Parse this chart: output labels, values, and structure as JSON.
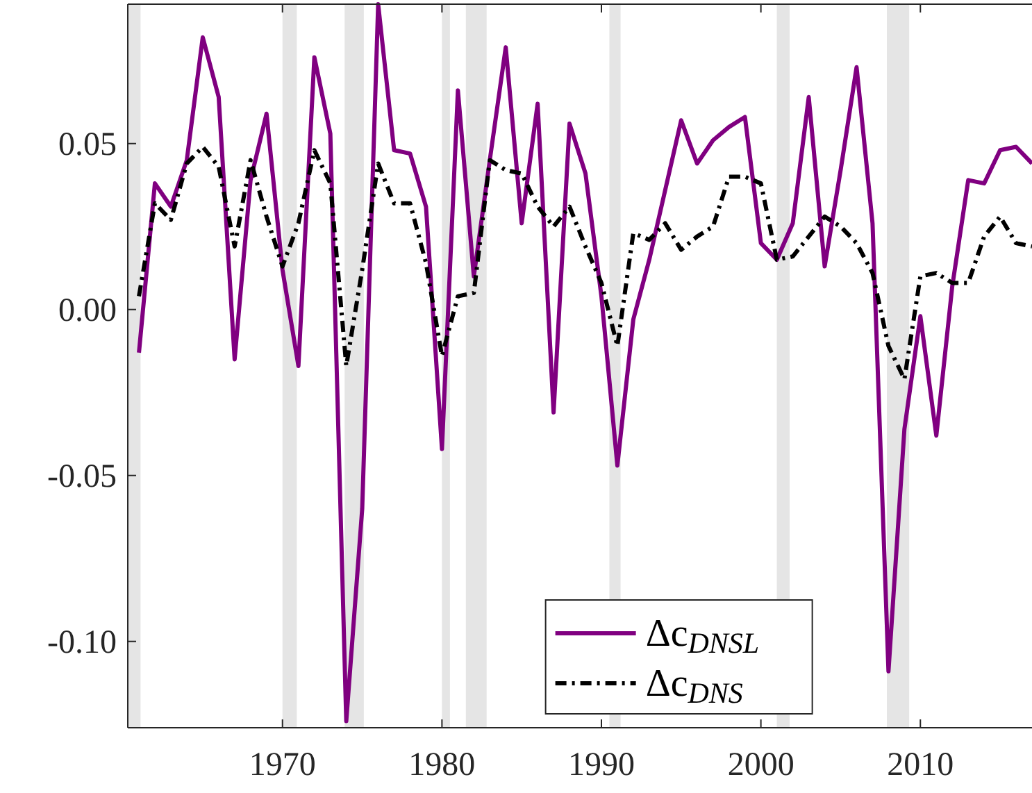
{
  "chart_data": {
    "type": "line",
    "x": [
      1961,
      1962,
      1963,
      1964,
      1965,
      1966,
      1967,
      1968,
      1969,
      1970,
      1971,
      1972,
      1973,
      1974,
      1975,
      1976,
      1977,
      1978,
      1979,
      1980,
      1981,
      1982,
      1983,
      1984,
      1985,
      1986,
      1987,
      1988,
      1989,
      1990,
      1991,
      1992,
      1993,
      1994,
      1995,
      1996,
      1997,
      1998,
      1999,
      2000,
      2001,
      2002,
      2003,
      2004,
      2005,
      2006,
      2007,
      2008,
      2009,
      2010,
      2011,
      2012,
      2013,
      2014,
      2015,
      2016,
      2017
    ],
    "series": [
      {
        "name": "Δc$_{DNSL}$",
        "color": "#800080",
        "line_style": "solid",
        "values": [
          -0.013,
          0.038,
          0.031,
          0.045,
          0.082,
          0.064,
          -0.015,
          0.039,
          0.059,
          0.012,
          -0.017,
          0.076,
          0.053,
          -0.124,
          -0.06,
          0.092,
          0.048,
          0.047,
          0.031,
          -0.042,
          0.066,
          0.01,
          0.045,
          0.079,
          0.026,
          0.062,
          -0.031,
          0.056,
          0.041,
          0.004,
          -0.047,
          -0.003,
          0.015,
          0.036,
          0.057,
          0.044,
          0.051,
          0.055,
          0.058,
          0.02,
          0.015,
          0.026,
          0.064,
          0.013,
          0.042,
          0.073,
          0.026,
          -0.109,
          -0.036,
          -0.002,
          -0.038,
          0.007,
          0.039,
          0.038,
          0.048,
          0.049,
          0.044
        ]
      },
      {
        "name": "Δc$_{DNS}$",
        "color": "#000000",
        "line_style": "dashdot",
        "values": [
          0.004,
          0.032,
          0.027,
          0.044,
          0.049,
          0.043,
          0.019,
          0.045,
          0.028,
          0.013,
          0.026,
          0.048,
          0.038,
          -0.017,
          0.012,
          0.044,
          0.032,
          0.032,
          0.014,
          -0.014,
          0.004,
          0.005,
          0.045,
          0.042,
          0.041,
          0.031,
          0.025,
          0.031,
          0.019,
          0.008,
          -0.011,
          0.023,
          0.021,
          0.026,
          0.018,
          0.022,
          0.025,
          0.04,
          0.04,
          0.038,
          0.015,
          0.016,
          0.022,
          0.028,
          0.025,
          0.02,
          0.011,
          -0.011,
          -0.021,
          0.01,
          0.011,
          0.008,
          0.008,
          0.022,
          0.028,
          0.02,
          0.019
        ]
      }
    ],
    "xlim": [
      1960.3,
      2017
    ],
    "xticks": [
      1970,
      1980,
      1990,
      2000,
      2010
    ],
    "ylim": [
      -0.126,
      0.092
    ],
    "yticks": [
      {
        "value": -0.1,
        "label": "-0.10"
      },
      -0.05,
      {
        "value": 0,
        "label": "0.00"
      },
      0.05
    ],
    "bands": [
      {
        "axis": "x",
        "from": 1960.3,
        "to": 1961.1,
        "color": "#e5e5e5"
      },
      {
        "axis": "x",
        "from": 1970.0,
        "to": 1970.9,
        "color": "#e5e5e5"
      },
      {
        "axis": "x",
        "from": 1973.9,
        "to": 1975.1,
        "color": "#e5e5e5"
      },
      {
        "axis": "x",
        "from": 1980.0,
        "to": 1980.5,
        "color": "#e5e5e5"
      },
      {
        "axis": "x",
        "from": 1981.5,
        "to": 1982.8,
        "color": "#e5e5e5"
      },
      {
        "axis": "x",
        "from": 1990.5,
        "to": 1991.2,
        "color": "#e5e5e5"
      },
      {
        "axis": "x",
        "from": 2001.0,
        "to": 2001.8,
        "color": "#e5e5e5"
      },
      {
        "axis": "x",
        "from": 2007.9,
        "to": 2009.3,
        "color": "#e5e5e5"
      }
    ],
    "legend": "bottom",
    "marker": "none"
  }
}
